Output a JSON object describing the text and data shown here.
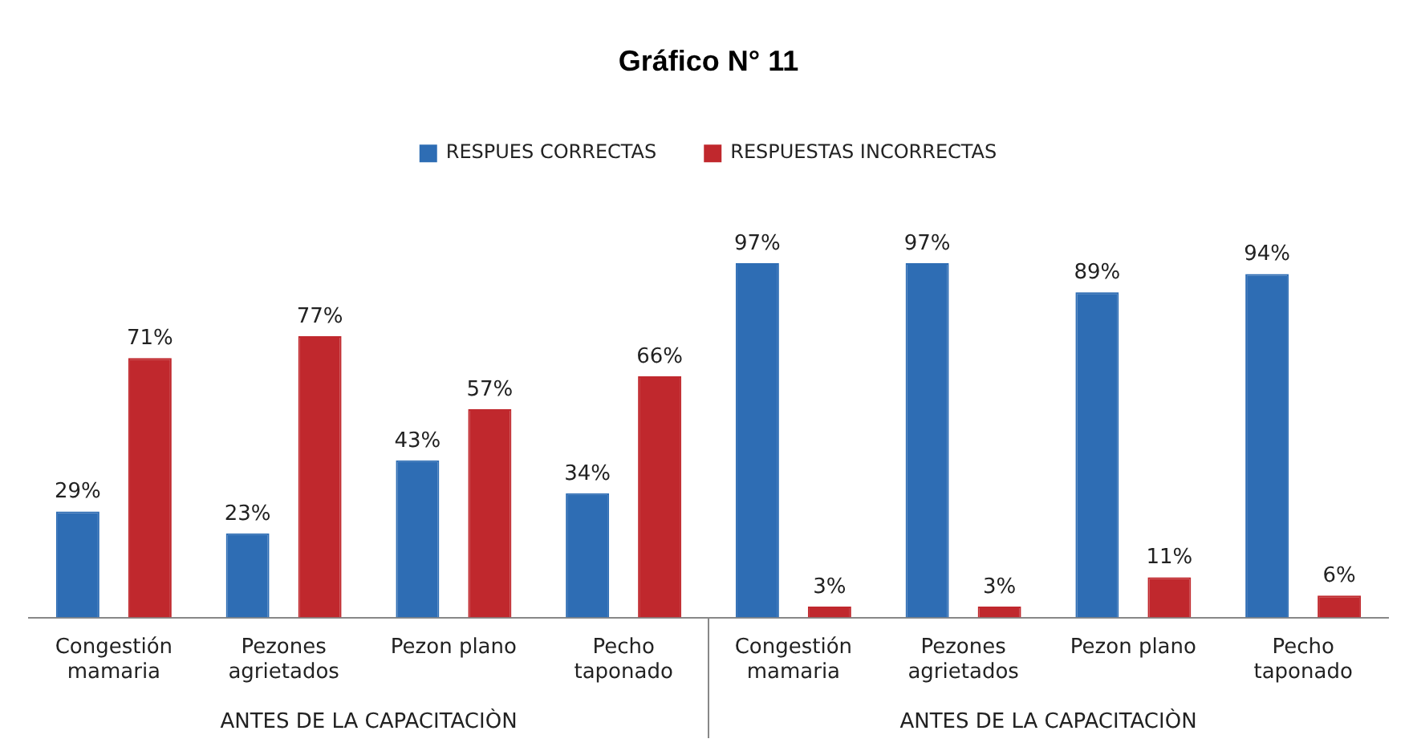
{
  "chart_data": {
    "type": "bar",
    "title": "Gráfico N° 11",
    "categories": [
      "Congestión mamaria",
      "Pezones agrietados",
      "Pezon plano",
      "Pecho taponado",
      "Congestión mamaria",
      "Pezones agrietados",
      "Pezon plano",
      "Pecho taponado"
    ],
    "series": [
      {
        "name": "RESPUES CORRECTAS",
        "color": "#2e6db4",
        "values": [
          29,
          23,
          43,
          34,
          97,
          97,
          89,
          94
        ],
        "value_labels": [
          "29%",
          "23%",
          "43%",
          "34%",
          "97%",
          "97%",
          "89%",
          "94%"
        ]
      },
      {
        "name": "RESPUESTAS INCORRECTAS",
        "color": "#c0282d",
        "values": [
          71,
          77,
          57,
          66,
          3,
          3,
          11,
          6
        ],
        "value_labels": [
          "71%",
          "77%",
          "57%",
          "66%",
          "3%",
          "3%",
          "11%",
          "6%"
        ]
      }
    ],
    "annotations": [
      "ANTES DE LA CAPACITACIÒN",
      "ANTES DE LA CAPACITACIÒN"
    ],
    "legend": "top"
  }
}
